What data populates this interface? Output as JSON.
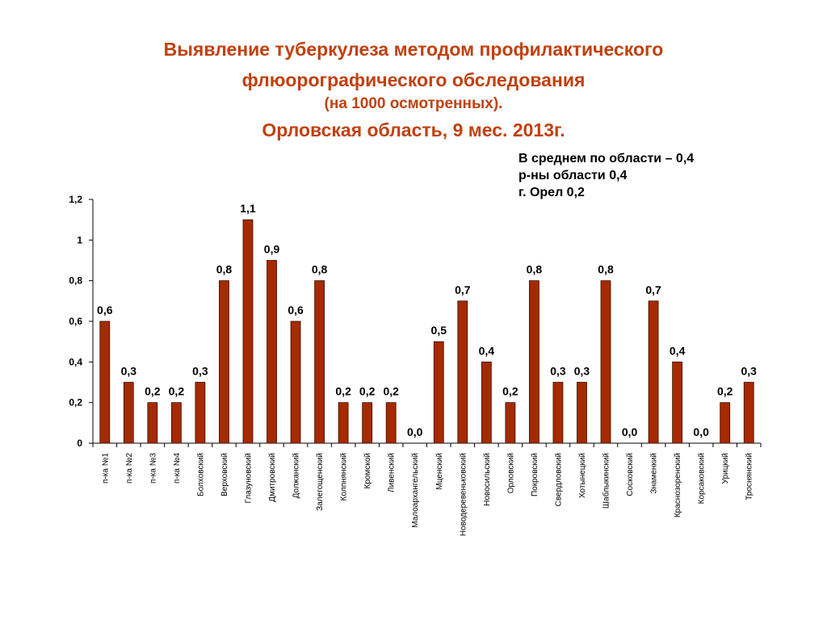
{
  "title": {
    "line1": "Выявление туберкулеза методом   профилактического",
    "line2": "флюорографического обследования",
    "line3": "(на 1000 осмотренных).",
    "line4": "Орловская область, 9 мес. 2013г."
  },
  "summary": {
    "line1": "В среднем по области – 0,4",
    "line2": "р-ны области 0,4",
    "line3": "г. Орел 0,2"
  },
  "colors": {
    "bar": "#a52a00",
    "bar_stroke": "#3a0e00",
    "title": "#c0410f"
  },
  "chart_data": {
    "type": "bar",
    "title": "Выявление туберкулеза методом профилактического флюорографического обследования (на 1000 осмотренных). Орловская область, 9 мес. 2013г.",
    "xlabel": "",
    "ylabel": "",
    "ylim": [
      0,
      1.2
    ],
    "yticks": [
      "0",
      "0,2",
      "0,4",
      "0,6",
      "0,8",
      "1",
      "1,2"
    ],
    "grid": false,
    "categories": [
      "п-ка №1",
      "п-ка №2",
      "п-ка №3",
      "п-ка №4",
      "Болховский",
      "Верховский",
      "Глазуновский",
      "Дмитровский",
      "Должанский",
      "Залегощенский",
      "Колпнянский",
      "Кромской",
      "Ливенский",
      "Малоархангельский",
      "Мценский",
      "Новодеревеньковский",
      "Новосильский",
      "Орловский",
      "Покровский",
      "Свердловский",
      "Хотынецкий",
      "Шаблыкинский",
      "Сосковский",
      "Знаменкий",
      "Краснозоренский",
      "Корсаковский",
      "Урицкий",
      "Троснянский"
    ],
    "values": [
      0.6,
      0.3,
      0.2,
      0.2,
      0.3,
      0.8,
      1.1,
      0.9,
      0.6,
      0.8,
      0.2,
      0.2,
      0.2,
      0.0,
      0.5,
      0.7,
      0.4,
      0.2,
      0.8,
      0.3,
      0.3,
      0.8,
      0.0,
      0.7,
      0.4,
      0.0,
      0.2,
      0.3
    ],
    "data_labels": [
      "0,6",
      "0,3",
      "0,2",
      "0,2",
      "0,3",
      "0,8",
      "1,1",
      "0,9",
      "0,6",
      "0,8",
      "0,2",
      "0,2",
      "0,2",
      "0,0",
      "0,5",
      "0,7",
      "0,4",
      "0,2",
      "0,8",
      "0,3",
      "0,3",
      "0,8",
      "0,0",
      "0,7",
      "0,4",
      "0,0",
      "0,2",
      "0,3"
    ]
  }
}
